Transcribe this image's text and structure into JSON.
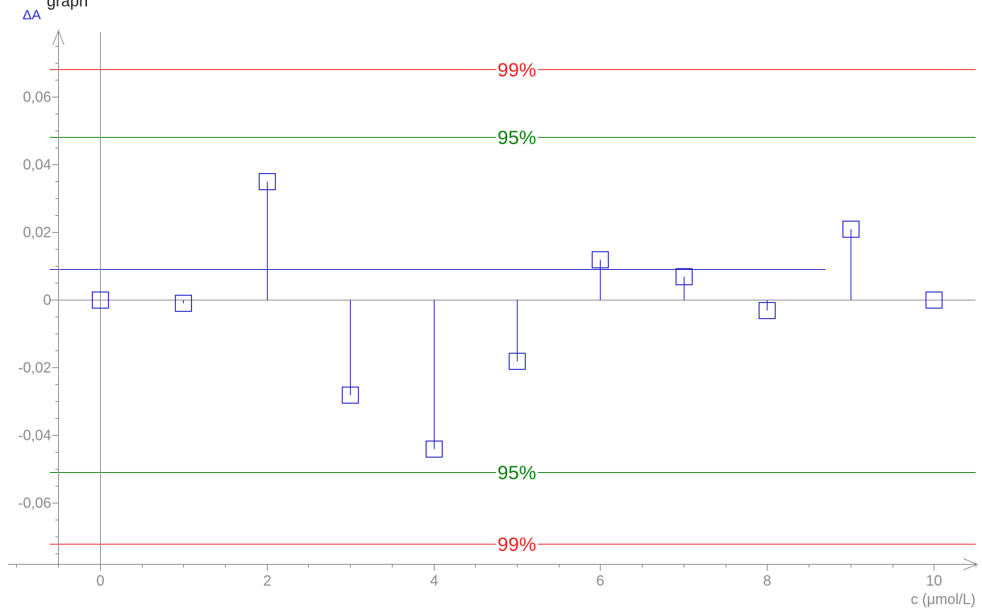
{
  "header": {
    "title_fragment": "graph"
  },
  "colors": {
    "background": "#ffffff",
    "title": "#222222",
    "axis": "#8c8c8c",
    "tick_text": "#8a8a8a",
    "series": "#1f1fc4",
    "ylabel": "#2a2ad4"
  },
  "chart_data": {
    "type": "scatter",
    "stems_from_zero": true,
    "x": [
      0,
      1,
      2,
      3,
      4,
      5,
      6,
      7,
      8,
      9,
      10
    ],
    "y": [
      0,
      -0.001,
      0.035,
      -0.028,
      -0.044,
      -0.018,
      0.012,
      0.007,
      -0.003,
      0.021,
      0
    ],
    "ylabel": "ΔA",
    "xlabel": "c (μmol/L)",
    "xlim": [
      -1.1,
      10.5
    ],
    "ylim": [
      -0.078,
      0.079
    ],
    "xticks": [
      0,
      2,
      4,
      6,
      8,
      10
    ],
    "xtick_labels": [
      "0",
      "2",
      "4",
      "6",
      "8",
      "10"
    ],
    "yticks": [
      0.06,
      0.04,
      0.02,
      0,
      -0.02,
      -0.04,
      -0.06
    ],
    "ytick_labels": [
      "0,06",
      "0,04",
      "0,02",
      "0",
      "-0,02",
      "-0,04",
      "-0,06"
    ],
    "limit_lines": [
      {
        "label": "99%",
        "y": 0.068,
        "color": "#e62222"
      },
      {
        "label": "95%",
        "y": 0.048,
        "color": "#0a7f0a"
      },
      {
        "label": "95%",
        "y": -0.051,
        "color": "#0a7f0a"
      },
      {
        "label": "99%",
        "y": -0.072,
        "color": "#e62222"
      }
    ],
    "mean_line": {
      "y": 0.009,
      "x_range": [
        -0.6,
        8.7
      ]
    },
    "grid": false,
    "legend": "none"
  }
}
